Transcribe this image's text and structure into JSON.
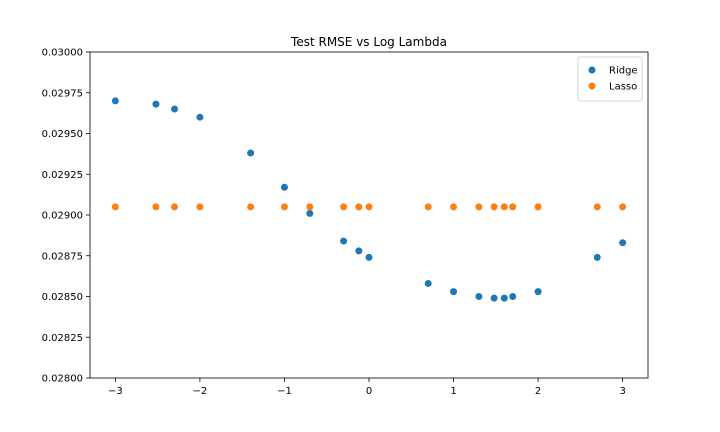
{
  "chart_data": {
    "type": "scatter",
    "title": "Test RMSE vs Log Lambda",
    "xlabel": "",
    "ylabel": "",
    "xlim": [
      -3.3,
      3.3
    ],
    "ylim": [
      0.028,
      0.03
    ],
    "x_ticks": [
      -3,
      -2,
      -1,
      0,
      1,
      2,
      3
    ],
    "x_tick_labels": [
      "−3",
      "−2",
      "−1",
      "0",
      "1",
      "2",
      "3"
    ],
    "y_ticks": [
      0.028,
      0.02825,
      0.0285,
      0.02875,
      0.029,
      0.02925,
      0.0295,
      0.02975,
      0.03
    ],
    "y_tick_labels": [
      "0.02800",
      "0.02825",
      "0.02850",
      "0.02875",
      "0.02900",
      "0.02925",
      "0.02950",
      "0.02975",
      "0.03000"
    ],
    "grid": false,
    "legend_position": "top-right",
    "series": [
      {
        "name": "Ridge",
        "color": "#1f77b4",
        "x": [
          -3,
          -2.52,
          -2.3,
          -2,
          -1.4,
          -1,
          -0.7,
          -0.3,
          -0.12,
          0,
          0.7,
          1,
          1.3,
          1.48,
          1.6,
          1.7,
          2,
          2.7,
          3
        ],
        "y": [
          0.0297,
          0.02968,
          0.02965,
          0.0296,
          0.02938,
          0.02917,
          0.02901,
          0.02884,
          0.02878,
          0.02874,
          0.02858,
          0.02853,
          0.0285,
          0.02849,
          0.02849,
          0.0285,
          0.02853,
          0.02874,
          0.02883
        ]
      },
      {
        "name": "Lasso",
        "color": "#ff7f0e",
        "x": [
          -3,
          -2.52,
          -2.3,
          -2,
          -1.4,
          -1,
          -0.7,
          -0.3,
          -0.12,
          0,
          0.7,
          1,
          1.3,
          1.48,
          1.6,
          1.7,
          2,
          2.7,
          3
        ],
        "y": [
          0.02905,
          0.02905,
          0.02905,
          0.02905,
          0.02905,
          0.02905,
          0.02905,
          0.02905,
          0.02905,
          0.02905,
          0.02905,
          0.02905,
          0.02905,
          0.02905,
          0.02905,
          0.02905,
          0.02905,
          0.02905,
          0.02905
        ]
      }
    ]
  }
}
